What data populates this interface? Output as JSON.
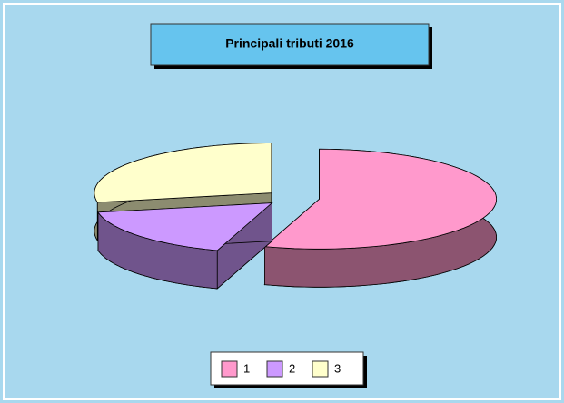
{
  "chart_data": {
    "type": "pie",
    "title": "Principali tributi 2016",
    "categories": [
      "1",
      "2",
      "3"
    ],
    "values": [
      55,
      17,
      28
    ],
    "colors": [
      "#ff99cc",
      "#cc99ff",
      "#ffffcc"
    ],
    "legend": "bottom"
  }
}
